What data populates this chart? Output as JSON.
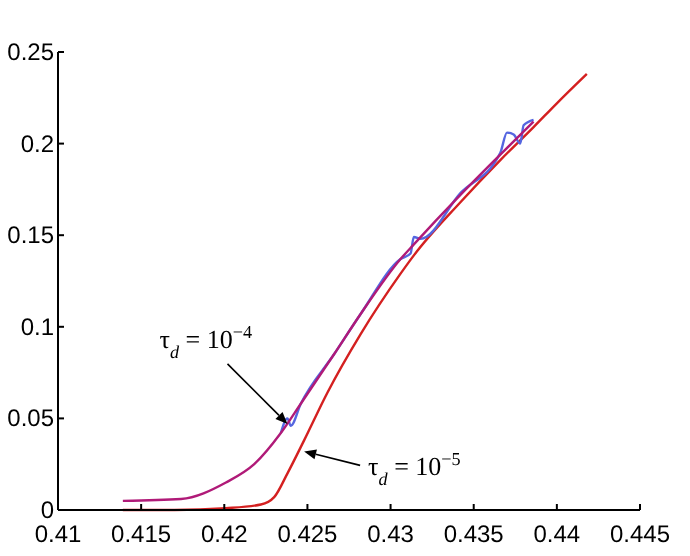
{
  "chart_data": {
    "type": "line",
    "xlim": [
      0.41,
      0.445
    ],
    "ylim": [
      0,
      0.25
    ],
    "xticks": [
      0.41,
      0.415,
      0.42,
      0.425,
      0.43,
      0.435,
      0.44,
      0.445
    ],
    "yticks": [
      0,
      0.05,
      0.1,
      0.15,
      0.2,
      0.25
    ],
    "grid": false,
    "line_style": "solid",
    "series": [
      {
        "color": "#d42020",
        "x": [
          0.4139,
          0.417,
          0.4201,
          0.4222,
          0.423,
          0.4238,
          0.4248,
          0.4262,
          0.4282,
          0.4306,
          0.4314,
          0.4342,
          0.4366,
          0.4386,
          0.44,
          0.4418
        ],
        "values": [
          0,
          0,
          0.001,
          0.003,
          0.007,
          0.02,
          0.038,
          0.064,
          0.096,
          0.129,
          0.139,
          0.168,
          0.191,
          0.209,
          0.222,
          0.238
        ]
      },
      {
        "color": "#5566e0",
        "x": [
          0.4234,
          0.4238,
          0.424,
          0.4246,
          0.4266,
          0.4282,
          0.4306,
          0.4312,
          0.4314,
          0.4318,
          0.4342,
          0.4366,
          0.437,
          0.4374,
          0.4378,
          0.438,
          0.4386
        ],
        "values": [
          0.042,
          0.05,
          0.046,
          0.058,
          0.085,
          0.107,
          0.137,
          0.14,
          0.149,
          0.148,
          0.173,
          0.195,
          0.206,
          0.205,
          0.2,
          0.21,
          0.213
        ]
      },
      {
        "color": "#b01a78",
        "x": [
          0.4139,
          0.4174,
          0.4201,
          0.4218,
          0.4234,
          0.4246,
          0.4266,
          0.4282,
          0.4306,
          0.4314,
          0.4342,
          0.4366,
          0.4386
        ],
        "values": [
          0.005,
          0.006,
          0.015,
          0.025,
          0.042,
          0.058,
          0.085,
          0.107,
          0.137,
          0.145,
          0.172,
          0.194,
          0.212
        ]
      }
    ],
    "annotations": [
      {
        "text": "τ$_{d}$ = 10$^{−4}$",
        "x": 0.4238,
        "y": 0.047
      },
      {
        "text": "τ$_{d}$ = 10$^{−5}$",
        "x": 0.4248,
        "y": 0.032
      }
    ]
  }
}
